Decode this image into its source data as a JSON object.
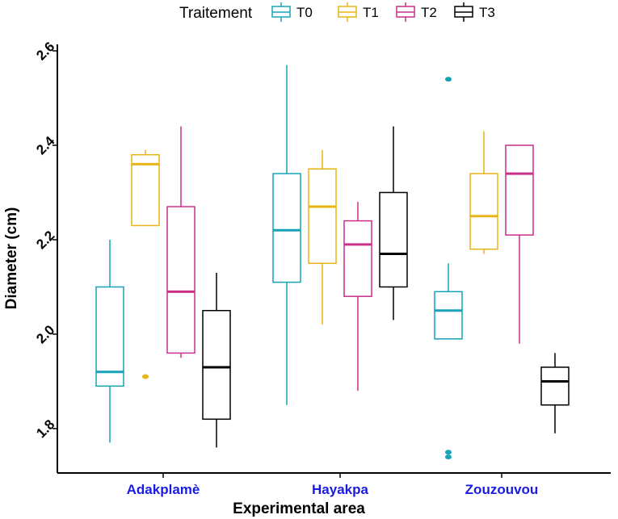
{
  "chart_data": {
    "type": "boxplot",
    "title": "",
    "xlabel": "Experimental area",
    "ylabel": "Diameter (cm)",
    "ylim": [
      1.7,
      2.62
    ],
    "yticks": [
      1.8,
      2.0,
      2.2,
      2.4,
      2.6
    ],
    "ytick_labels": [
      "1.8",
      "2.0",
      "2.2",
      "2.4",
      "2.6"
    ],
    "legend": {
      "title": "Traitement",
      "position": "top",
      "entries": [
        {
          "name": "T0",
          "color": "#17a2b8"
        },
        {
          "name": "T1",
          "color": "#e8b417"
        },
        {
          "name": "T2",
          "color": "#cc2e8a"
        },
        {
          "name": "T3",
          "color": "#000000"
        }
      ]
    },
    "categories": [
      "Adakplamè",
      "Hayakpa",
      "Zouzouvou"
    ],
    "category_color": "#1a1ae6",
    "series": [
      {
        "name": "T0",
        "color": "#17a2b8",
        "boxes": [
          {
            "whisker_low": 1.77,
            "q1": 1.89,
            "median": 1.92,
            "q3": 2.1,
            "whisker_high": 2.2,
            "outliers": []
          },
          {
            "whisker_low": 1.85,
            "q1": 2.11,
            "median": 2.22,
            "q3": 2.34,
            "whisker_high": 2.57,
            "outliers": []
          },
          {
            "whisker_low": 1.99,
            "q1": 1.99,
            "median": 2.05,
            "q3": 2.09,
            "whisker_high": 2.15,
            "outliers": [
              2.54,
              1.75,
              1.74
            ]
          }
        ]
      },
      {
        "name": "T1",
        "color": "#e8b417",
        "boxes": [
          {
            "whisker_low": 2.23,
            "q1": 2.23,
            "median": 2.36,
            "q3": 2.38,
            "whisker_high": 2.39,
            "outliers": [
              1.91
            ]
          },
          {
            "whisker_low": 2.02,
            "q1": 2.15,
            "median": 2.27,
            "q3": 2.35,
            "whisker_high": 2.39,
            "outliers": []
          },
          {
            "whisker_low": 2.17,
            "q1": 2.18,
            "median": 2.25,
            "q3": 2.34,
            "whisker_high": 2.43,
            "outliers": []
          }
        ]
      },
      {
        "name": "T2",
        "color": "#cc2e8a",
        "boxes": [
          {
            "whisker_low": 1.95,
            "q1": 1.96,
            "median": 2.09,
            "q3": 2.27,
            "whisker_high": 2.44,
            "outliers": []
          },
          {
            "whisker_low": 1.88,
            "q1": 2.08,
            "median": 2.19,
            "q3": 2.24,
            "whisker_high": 2.28,
            "outliers": []
          },
          {
            "whisker_low": 1.98,
            "q1": 2.21,
            "median": 2.34,
            "q3": 2.4,
            "whisker_high": 2.4,
            "outliers": []
          }
        ]
      },
      {
        "name": "T3",
        "color": "#000000",
        "boxes": [
          {
            "whisker_low": 1.76,
            "q1": 1.82,
            "median": 1.93,
            "q3": 2.05,
            "whisker_high": 2.13,
            "outliers": []
          },
          {
            "whisker_low": 2.03,
            "q1": 2.1,
            "median": 2.17,
            "q3": 2.3,
            "whisker_high": 2.44,
            "outliers": []
          },
          {
            "whisker_low": 1.79,
            "q1": 1.85,
            "median": 1.9,
            "q3": 1.93,
            "whisker_high": 1.96,
            "outliers": []
          }
        ]
      }
    ]
  }
}
